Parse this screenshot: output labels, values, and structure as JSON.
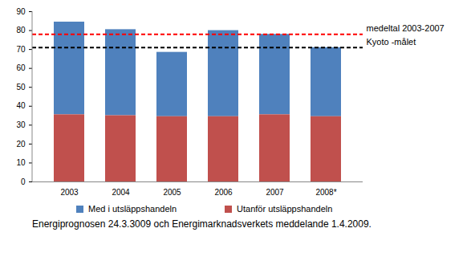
{
  "chart_data": {
    "type": "bar",
    "stacked": true,
    "categories": [
      "2003",
      "2004",
      "2005",
      "2006",
      "2007",
      "2008*"
    ],
    "series": [
      {
        "name": "Med i utsläppshandeln",
        "color": "#4f81bd",
        "values": [
          49,
          45.5,
          34,
          45.5,
          42.5,
          36.5
        ]
      },
      {
        "name": "Utanför utsläppshandeln",
        "color": "#c0504d",
        "values": [
          35.5,
          35,
          34.5,
          34.5,
          35.5,
          34.5
        ]
      }
    ],
    "reference_lines": [
      {
        "label": "medeltal 2003-2007",
        "value": 78,
        "color": "#ff0000",
        "line_style": "dashed"
      },
      {
        "label": "Kyoto -målet",
        "value": 71,
        "color": "#000000",
        "line_style": "dashed"
      }
    ],
    "ylim": [
      0,
      90
    ],
    "yticks": [
      0,
      10,
      20,
      30,
      40,
      50,
      60,
      70,
      80,
      90
    ],
    "grid": false,
    "legend": "bottom",
    "caption": "Energiprognosen 24.3.3009 och Energimarknadsverkets meddelande 1.4.2009."
  }
}
